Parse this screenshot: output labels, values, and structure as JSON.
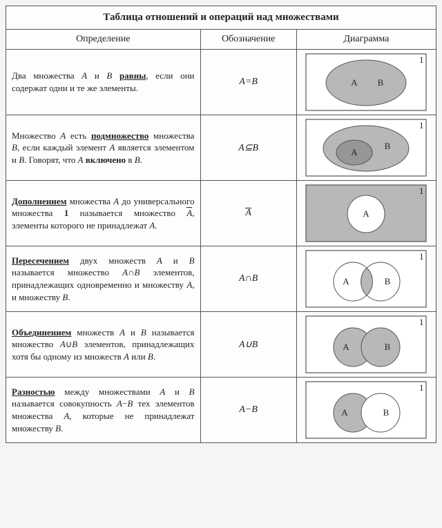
{
  "title": "Таблица отношений и операций над множествами",
  "headers": {
    "definition": "Определение",
    "notation": "Обозначение",
    "diagram": "Диаграмма"
  },
  "colors": {
    "border": "#555555",
    "universe_bg": "#ffffff",
    "fill_shade": "#b8b8b8",
    "fill_white": "#ffffff",
    "fill_dark": "#969696",
    "text": "#222222"
  },
  "diagram_box": {
    "width": 178,
    "height": 86,
    "label": "1"
  },
  "rows": [
    {
      "definition_html": "Два множества <i>A</i> и <i>B</i> <b class='underline'>равны</b>, если они содержат одни и те же элементы.",
      "notation_html": "<i>A</i>=<i>B</i>",
      "diagram": "equal"
    },
    {
      "definition_html": "Множество <i>A</i> есть <b class='underline'>подмножество</b> множества <i>B</i>, если каждый элемент <i>A</i> является элементом и <i>B</i>. Говорят, что <i>A</i> <b>включено</b> в <i>B</i>.",
      "notation_html": "<i>A</i>&#8838;<i>B</i>",
      "diagram": "subset"
    },
    {
      "definition_html": "<b class='underline'>Дополнением</b> множества <i>A</i> до универсального множества <b>1</b> называется множество <span class='ov'><i>A</i></span>, элементы которого не принадлежат <i>A</i>.",
      "notation_html": "<span class='ov'><i>A</i></span>",
      "diagram": "complement"
    },
    {
      "definition_html": "<b class='underline'>Пересечением</b> двух множеств <i>A</i> и <i>B</i> называется множество <i>A</i>&#8745;<i>B</i> элементов, принадлежащих одновременно и множеству <i>A</i>, и множеству <i>B</i>.",
      "notation_html": "<i>A</i>&#8745;<i>B</i>",
      "diagram": "intersection"
    },
    {
      "definition_html": "<b class='underline'>Объединением</b> множеств <i>A</i> и <i>B</i> называется множество <i>A</i>&#8746;<i>B</i> элементов, принадлежащих хотя бы одному из множеств <i>A</i> или <i>B</i>.",
      "notation_html": "<i>A</i>&#8746;<i>B</i>",
      "diagram": "union"
    },
    {
      "definition_html": "<b class='underline'>Разностью</b> между множествами <i>A</i> и <i>B</i> называется совокупность <i>A</i>&#8722;<i>B</i> тех элементов множества <i>A</i>, которые не принадлежат множеству <i>B</i>.",
      "notation_html": "<i>A</i>&#8722;<i>B</i>",
      "diagram": "difference"
    }
  ]
}
